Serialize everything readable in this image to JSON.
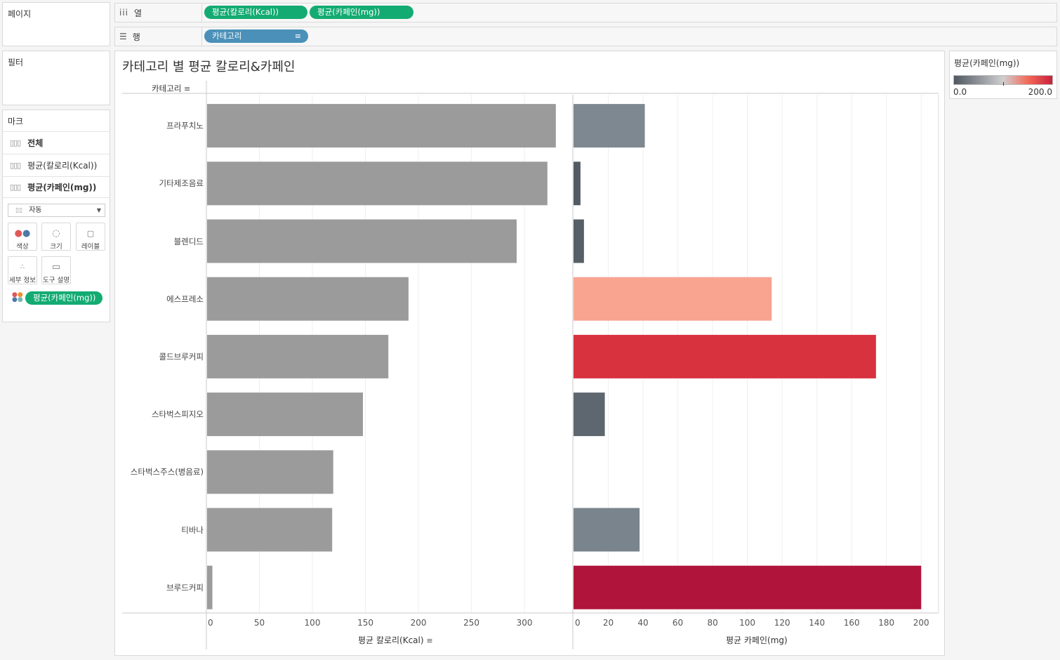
{
  "left_panel": {
    "pages_title": "페이지",
    "filters_title": "필터",
    "marks_title": "마크",
    "mark_layers": [
      "전체",
      "평균(칼로리(Kcal))",
      "평균(카페인(mg))"
    ],
    "mark_type": "자동",
    "mark_buttons": [
      "색상",
      "크기",
      "레이블",
      "세부 정보",
      "도구 설명"
    ],
    "color_pill": "평균(카페인(mg))"
  },
  "shelves": {
    "columns_label": "열",
    "rows_label": "행",
    "column_pills": [
      "평균(칼로리(Kcal))",
      "평균(카페인(mg))"
    ],
    "row_pills": [
      "카테고리"
    ]
  },
  "legend": {
    "title": "평균(카페인(mg))",
    "min_label": "0.0",
    "max_label": "200.0",
    "colors": [
      "#4f5862",
      "#cfcfcf",
      "#f46a5a",
      "#c8203a"
    ]
  },
  "chart_data": {
    "type": "bar",
    "title": "카테고리 별 평균 칼로리&카페인",
    "row_header": "카테고리",
    "categories": [
      "프라푸치노",
      "기타제조음료",
      "블렌디드",
      "에스프레소",
      "콜드브루커피",
      "스타벅스피지오",
      "스타벅스주스(병음료)",
      "티바나",
      "브루드커피"
    ],
    "series": [
      {
        "name": "평균 칼로리(Kcal)",
        "values": [
          329,
          321,
          292,
          190,
          171,
          147,
          119,
          118,
          5
        ],
        "xlim": [
          0,
          345
        ],
        "ticks": [
          0,
          50,
          100,
          150,
          200,
          250,
          300
        ],
        "color": "#9b9b9b"
      },
      {
        "name": "평균 카페인(mg)",
        "values": [
          41,
          4,
          6,
          114,
          174,
          18,
          0,
          38,
          200
        ],
        "xlim": [
          0,
          210
        ],
        "ticks": [
          0,
          20,
          40,
          60,
          80,
          100,
          120,
          140,
          160,
          180,
          200
        ],
        "colors": [
          "#7e8890",
          "#525b63",
          "#565f67",
          "#f9a391",
          "#d9323f",
          "#5e6770",
          "#cccccc",
          "#7a848c",
          "#b0143a"
        ]
      }
    ]
  }
}
